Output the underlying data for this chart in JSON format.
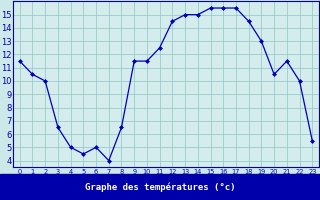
{
  "hours": [
    0,
    1,
    2,
    3,
    4,
    5,
    6,
    7,
    8,
    9,
    10,
    11,
    12,
    13,
    14,
    15,
    16,
    17,
    18,
    19,
    20,
    21,
    22,
    23
  ],
  "temps": [
    11.5,
    10.5,
    10.0,
    6.5,
    5.0,
    4.5,
    5.0,
    4.0,
    6.5,
    11.5,
    11.5,
    12.5,
    14.5,
    15.0,
    15.0,
    15.5,
    15.5,
    15.5,
    14.5,
    13.0,
    10.5,
    11.5,
    10.0,
    5.5
  ],
  "xlabel": "Graphe des températures (°c)",
  "ylim": [
    3.5,
    16.0
  ],
  "xlim": [
    -0.5,
    23.5
  ],
  "yticks": [
    4,
    5,
    6,
    7,
    8,
    9,
    10,
    11,
    12,
    13,
    14,
    15
  ],
  "xtick_labels": [
    "0",
    "1",
    "2",
    "3",
    "4",
    "5",
    "6",
    "7",
    "8",
    "9",
    "10",
    "11",
    "12",
    "13",
    "14",
    "15",
    "16",
    "17",
    "18",
    "19",
    "20",
    "21",
    "22",
    "23"
  ],
  "line_color": "#0000bb",
  "marker": "D",
  "marker_size": 2.0,
  "bg_color": "#cce8e8",
  "plot_bg_color": "#d4ecec",
  "grid_color": "#99cccc",
  "xlabel_color": "#ffffff",
  "xlabel_bg": "#0000aa",
  "tick_label_color": "#0000bb",
  "spine_color": "#0000bb"
}
